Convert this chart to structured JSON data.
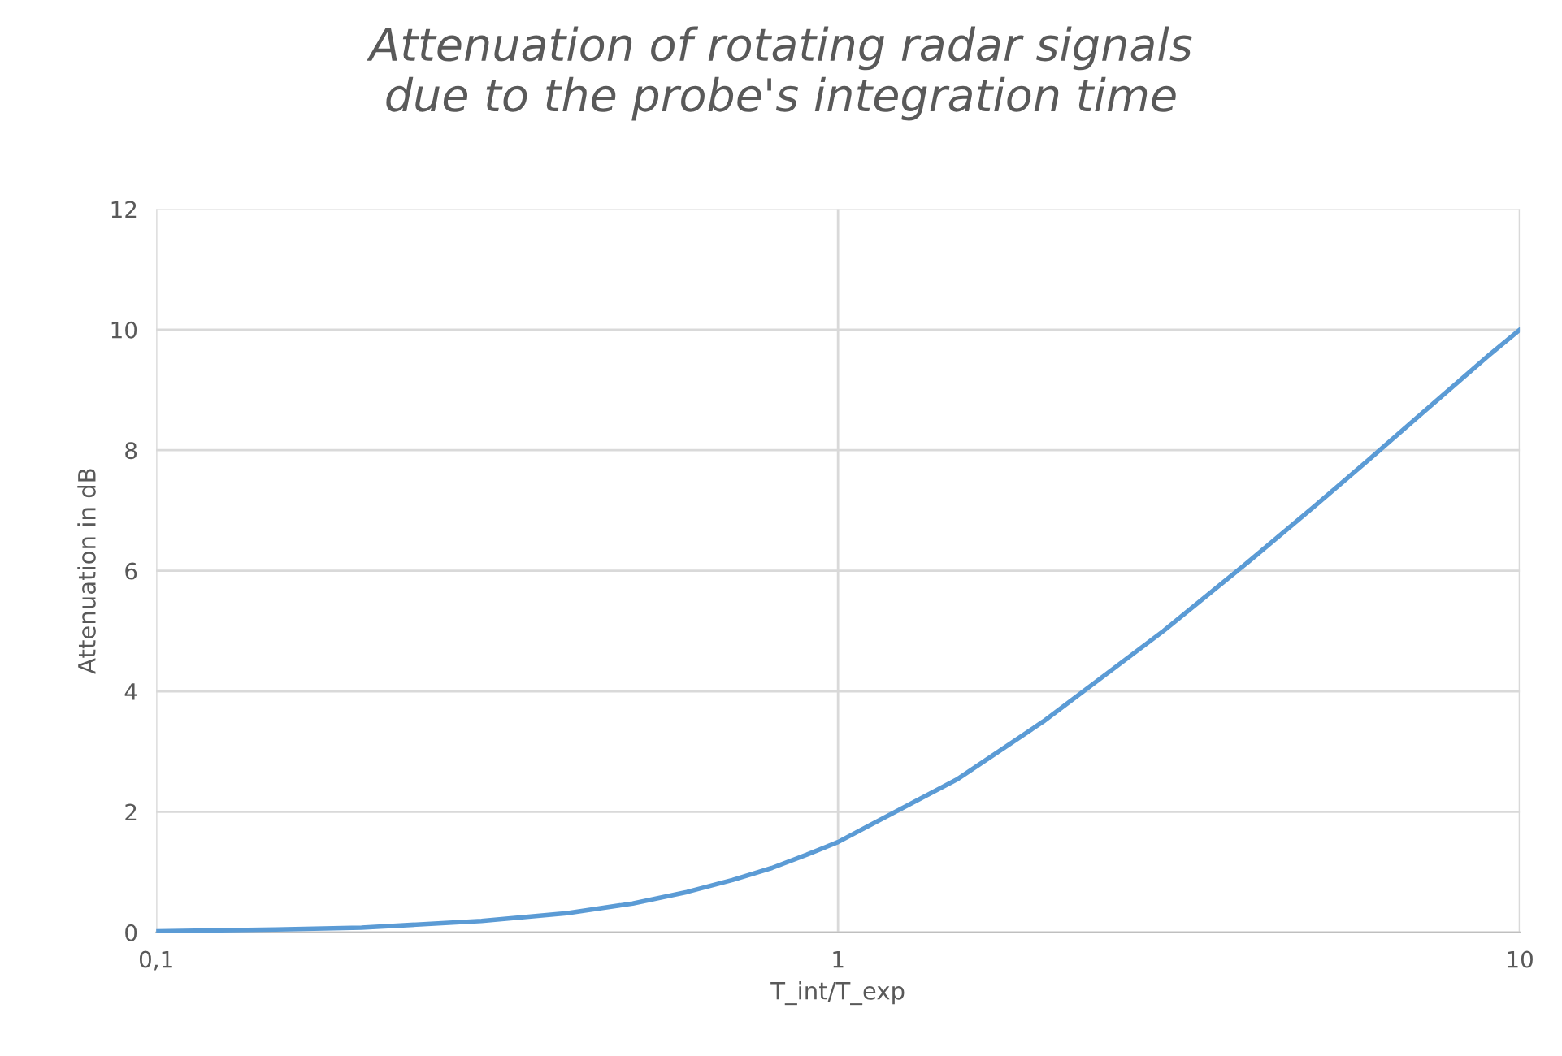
{
  "chart_data": {
    "type": "line",
    "title": "Attenuation of rotating radar signals\ndue to the probe's integration time",
    "xlabel": "T_int/T_exp",
    "ylabel": "Attenuation in dB",
    "log": "x",
    "grid": true,
    "marker": "none",
    "line_style": "solid",
    "xlim": [
      0.1,
      10
    ],
    "ylim": [
      0,
      12
    ],
    "xticks": [
      {
        "value": 0.1,
        "label": "0,1"
      },
      1,
      10
    ],
    "yticks": [
      0,
      2,
      4,
      6,
      8,
      10,
      12
    ],
    "series": [
      {
        "color": "#5b9bd5",
        "x": [
          0.1,
          0.15,
          0.2,
          0.3,
          0.4,
          0.5,
          0.6,
          0.7,
          0.8,
          0.9,
          1,
          1.5,
          2,
          3,
          4,
          5,
          6,
          7,
          8,
          9,
          10
        ],
        "values": [
          0.02,
          0.05,
          0.08,
          0.19,
          0.32,
          0.48,
          0.67,
          0.87,
          1.07,
          1.29,
          1.5,
          2.55,
          3.5,
          5.0,
          6.15,
          7.07,
          7.84,
          8.5,
          9.07,
          9.57,
          10.0
        ]
      }
    ]
  }
}
